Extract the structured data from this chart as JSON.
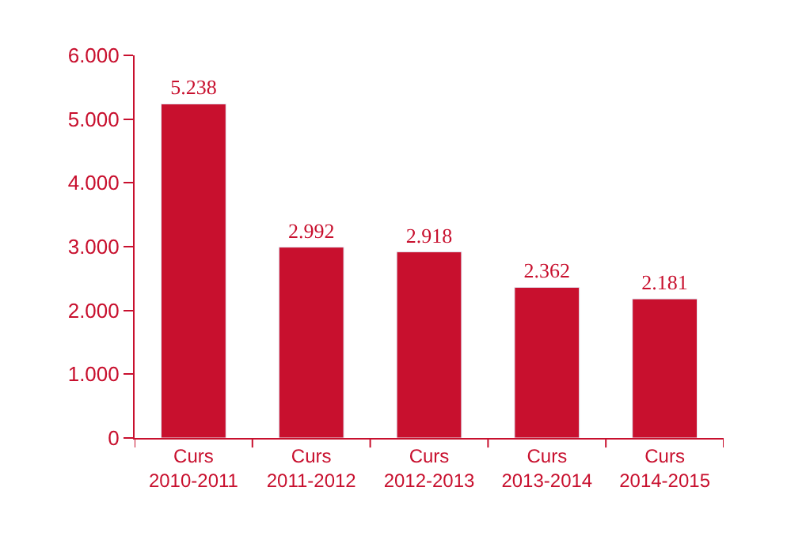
{
  "chart_data": {
    "type": "bar",
    "categories": [
      "Curs 2010-2011",
      "Curs 2011-2012",
      "Curs 2012-2013",
      "Curs 2013-2014",
      "Curs 2014-2015"
    ],
    "values": [
      5238,
      2992,
      2918,
      2362,
      2181
    ],
    "value_labels": [
      "5.238",
      "2.992",
      "2.918",
      "2.362",
      "2.181"
    ],
    "color": "#c8102e",
    "ylim": [
      0,
      6000
    ],
    "yticks": [
      {
        "value": 0,
        "label": "0"
      },
      {
        "value": 1000,
        "label": "1.000"
      },
      {
        "value": 2000,
        "label": "2.000"
      },
      {
        "value": 3000,
        "label": "3.000"
      },
      {
        "value": 4000,
        "label": "4.000"
      },
      {
        "value": 5000,
        "label": "5.000"
      },
      {
        "value": 6000,
        "label": "6.000"
      }
    ],
    "legend": false
  }
}
